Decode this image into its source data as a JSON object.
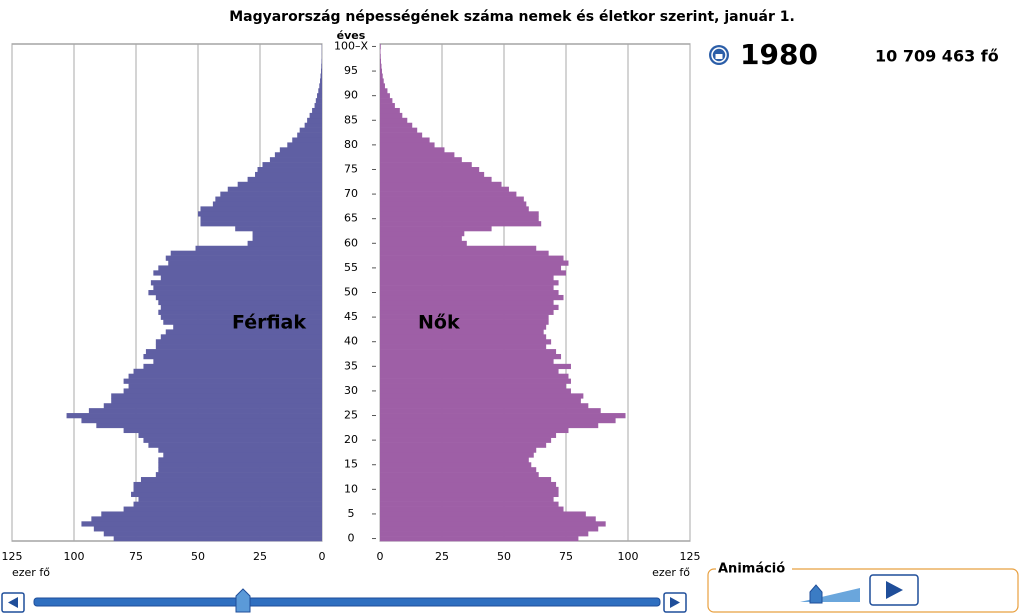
{
  "chart_data": {
    "type": "pyramid",
    "title": "Magyarország népességének száma nemek és életkor szerint, január 1.",
    "y_label": "éves",
    "x_label": "ezer fő",
    "categories": [
      "0",
      null,
      null,
      null,
      null,
      "5",
      null,
      null,
      null,
      null,
      "10",
      null,
      null,
      null,
      null,
      "15",
      null,
      null,
      null,
      null,
      "20",
      null,
      null,
      null,
      null,
      "25",
      null,
      null,
      null,
      null,
      "30",
      null,
      null,
      null,
      null,
      "35",
      null,
      null,
      null,
      null,
      "40",
      null,
      null,
      null,
      null,
      "45",
      null,
      null,
      null,
      null,
      "50",
      null,
      null,
      null,
      null,
      "55",
      null,
      null,
      null,
      null,
      "60",
      null,
      null,
      null,
      null,
      "65",
      null,
      null,
      null,
      null,
      "70",
      null,
      null,
      null,
      null,
      "75",
      null,
      null,
      null,
      null,
      "80",
      null,
      null,
      null,
      null,
      "85",
      null,
      null,
      null,
      null,
      "90",
      null,
      null,
      null,
      null,
      "95",
      null,
      null,
      null,
      null,
      "100–X"
    ],
    "series": [
      {
        "name": "Férfiak",
        "color": "#5f5fa3",
        "side": "left",
        "values": [
          84,
          88,
          92,
          97,
          93,
          89,
          80,
          76,
          74,
          77,
          76,
          76,
          73,
          67,
          66,
          66,
          66,
          64,
          66,
          70,
          72,
          74,
          80,
          91,
          97,
          103,
          94,
          88,
          85,
          85,
          80,
          78,
          80,
          78,
          76,
          72,
          68,
          72,
          71,
          67,
          67,
          65,
          63,
          60,
          64,
          65,
          66,
          65,
          66,
          67,
          70,
          68,
          69,
          65,
          68,
          66,
          62,
          63,
          61,
          51,
          30,
          28,
          28,
          35,
          49,
          49,
          50,
          49,
          44,
          43,
          41,
          38,
          34,
          30,
          27,
          26,
          24,
          21,
          19,
          17,
          14,
          12,
          10,
          9,
          7,
          6,
          5,
          4,
          3,
          2.5,
          2,
          1.5,
          1.1,
          0.8,
          0.6,
          0.4,
          0.3,
          0.2,
          0.1,
          0.1,
          0.1
        ]
      },
      {
        "name": "Nők",
        "color": "#9e5fa6",
        "side": "right",
        "values": [
          80,
          84,
          88,
          91,
          87,
          83,
          74,
          72,
          70,
          72,
          72,
          71,
          69,
          64,
          63,
          61,
          60,
          62,
          63,
          67,
          69,
          71,
          76,
          88,
          95,
          99,
          89,
          84,
          81,
          82,
          77,
          75,
          77,
          76,
          72,
          77,
          70,
          73,
          71,
          67,
          69,
          67,
          66,
          67,
          68,
          68,
          70,
          72,
          70,
          74,
          72,
          70,
          72,
          70,
          75,
          73,
          76,
          74,
          68,
          63,
          35,
          33,
          34,
          45,
          65,
          64,
          64,
          60,
          59,
          58,
          55,
          52,
          49,
          45,
          42,
          40,
          37,
          33,
          30,
          26,
          22,
          20,
          17,
          15,
          13,
          11,
          9,
          8,
          6,
          5,
          4,
          3,
          2,
          1.5,
          1.1,
          0.8,
          0.6,
          0.4,
          0.3,
          0.2,
          0.3
        ]
      }
    ],
    "xlim": [
      0,
      125
    ],
    "xticks": [
      125,
      100,
      75,
      50,
      25,
      0
    ],
    "grid": true
  },
  "info": {
    "year": "1980",
    "total": "10 709 463 fő"
  },
  "controls": {
    "animation_label": "Animáció"
  }
}
